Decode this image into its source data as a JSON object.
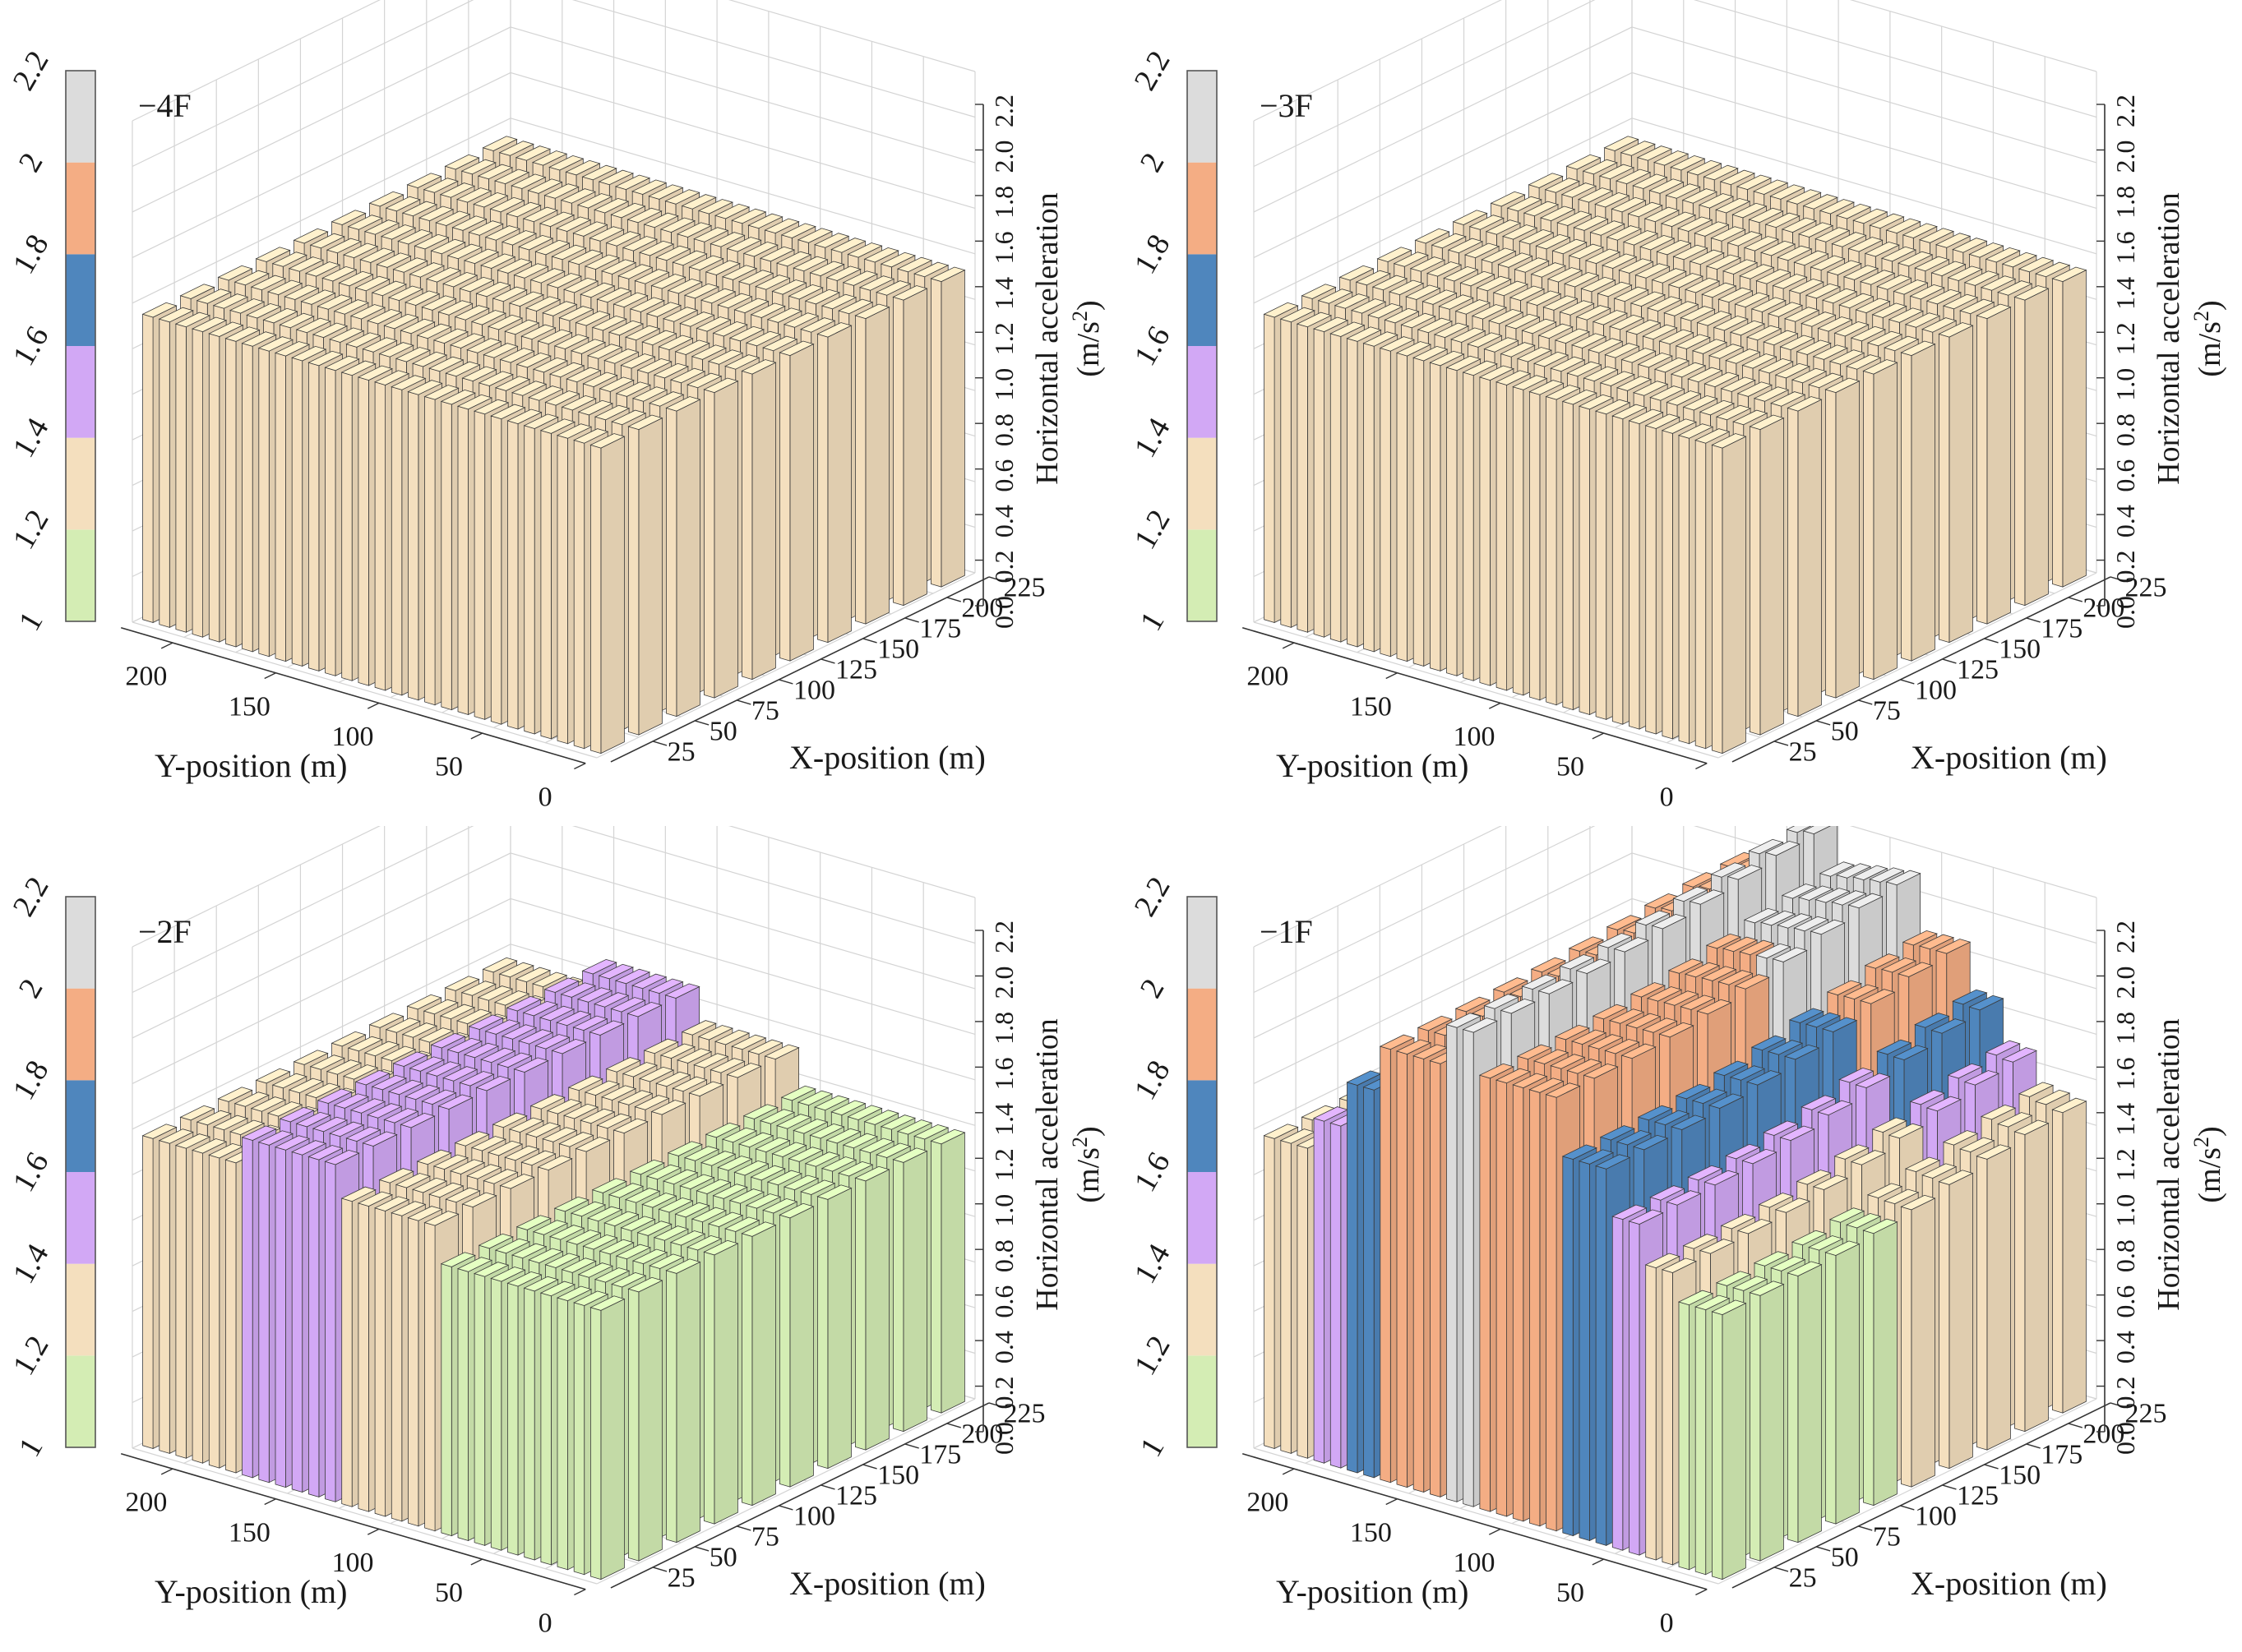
{
  "figure": {
    "description_panels": [
      "-4F",
      "-3F",
      "-2F",
      "-1F"
    ]
  },
  "chart_data": [
    {
      "type": "bar3d",
      "panel_label": "−4F",
      "zlabel_main": "Horizontal acceleration",
      "zlabel_unit_prefix": "(m/s",
      "zlabel_unit_sup": "2",
      "zlabel_unit_suffix": ")",
      "xlabel": "X-position (m)",
      "ylabel": "Y-position (m)",
      "x_ticks": [
        "25",
        "50",
        "75",
        "100",
        "125",
        "150",
        "175",
        "200",
        "225"
      ],
      "y_ticks": [
        "0",
        "50",
        "100",
        "150",
        "200"
      ],
      "z_ticks": [
        "0.0",
        "0.2",
        "0.4",
        "0.6",
        "0.8",
        "1.0",
        "1.2",
        "1.4",
        "1.6",
        "1.8",
        "2.0",
        "2.2"
      ],
      "zlim": [
        0,
        2.2
      ],
      "colorbar": {
        "ticks": [
          "1",
          "1.2",
          "1.4",
          "1.6",
          "1.8",
          "2",
          "2.2"
        ],
        "bands": [
          {
            "from": 1.0,
            "to": 1.2,
            "color": "#d4edb4"
          },
          {
            "from": 1.2,
            "to": 1.4,
            "color": "#f4dfbe"
          },
          {
            "from": 1.4,
            "to": 1.6,
            "color": "#d2a8f5"
          },
          {
            "from": 1.6,
            "to": 1.8,
            "color": "#4f86bd"
          },
          {
            "from": 1.8,
            "to": 2.0,
            "color": "#f4ad84"
          },
          {
            "from": 2.0,
            "to": 2.2,
            "color": "#dcdcdc"
          }
        ]
      },
      "grid": {
        "nx": 10,
        "ny": 28
      },
      "surface": {
        "base": 1.34,
        "bands": [],
        "bumps": []
      }
    },
    {
      "type": "bar3d",
      "panel_label": "−3F",
      "zlabel_main": "Horizontal acceleration",
      "zlabel_unit_prefix": "(m/s",
      "zlabel_unit_sup": "2",
      "zlabel_unit_suffix": ")",
      "xlabel": "X-position (m)",
      "ylabel": "Y-position (m)",
      "x_ticks": [
        "25",
        "50",
        "75",
        "100",
        "125",
        "150",
        "175",
        "200",
        "225"
      ],
      "y_ticks": [
        "0",
        "50",
        "100",
        "150",
        "200"
      ],
      "z_ticks": [
        "0.0",
        "0.2",
        "0.4",
        "0.6",
        "0.8",
        "1.0",
        "1.2",
        "1.4",
        "1.6",
        "1.8",
        "2.0",
        "2.2"
      ],
      "zlim": [
        0,
        2.2
      ],
      "colorbar": {
        "ticks": [
          "1",
          "1.2",
          "1.4",
          "1.6",
          "1.8",
          "2",
          "2.2"
        ],
        "bands": [
          {
            "from": 1.0,
            "to": 1.2,
            "color": "#d4edb4"
          },
          {
            "from": 1.2,
            "to": 1.4,
            "color": "#f4dfbe"
          },
          {
            "from": 1.4,
            "to": 1.6,
            "color": "#d2a8f5"
          },
          {
            "from": 1.6,
            "to": 1.8,
            "color": "#4f86bd"
          },
          {
            "from": 1.8,
            "to": 2.0,
            "color": "#f4ad84"
          },
          {
            "from": 2.0,
            "to": 2.2,
            "color": "#dcdcdc"
          }
        ]
      },
      "grid": {
        "nx": 10,
        "ny": 28
      },
      "surface": {
        "base": 1.34,
        "bands": [],
        "bumps": []
      }
    },
    {
      "type": "bar3d",
      "panel_label": "−2F",
      "zlabel_main": "Horizontal acceleration",
      "zlabel_unit_prefix": "(m/s",
      "zlabel_unit_sup": "2",
      "zlabel_unit_suffix": ")",
      "xlabel": "X-position (m)",
      "ylabel": "Y-position (m)",
      "x_ticks": [
        "25",
        "50",
        "75",
        "100",
        "125",
        "150",
        "175",
        "200",
        "225"
      ],
      "y_ticks": [
        "0",
        "50",
        "100",
        "150",
        "200"
      ],
      "z_ticks": [
        "0.0",
        "0.2",
        "0.4",
        "0.6",
        "0.8",
        "1.0",
        "1.2",
        "1.4",
        "1.6",
        "1.8",
        "2.0",
        "2.2"
      ],
      "zlim": [
        0,
        2.2
      ],
      "colorbar": {
        "ticks": [
          "1",
          "1.2",
          "1.4",
          "1.6",
          "1.8",
          "2",
          "2.2"
        ],
        "bands": [
          {
            "from": 1.0,
            "to": 1.2,
            "color": "#d4edb4"
          },
          {
            "from": 1.2,
            "to": 1.4,
            "color": "#f4dfbe"
          },
          {
            "from": 1.4,
            "to": 1.6,
            "color": "#d2a8f5"
          },
          {
            "from": 1.6,
            "to": 1.8,
            "color": "#4f86bd"
          },
          {
            "from": 1.8,
            "to": 2.0,
            "color": "#f4ad84"
          },
          {
            "from": 2.0,
            "to": 2.2,
            "color": "#dcdcdc"
          }
        ]
      },
      "grid": {
        "nx": 10,
        "ny": 28
      },
      "surface": {
        "base": 1.18,
        "bands": [
          {
            "y_from": 0,
            "y_to": 80,
            "value": 1.18
          },
          {
            "y_from": 80,
            "y_to": 130,
            "value": 1.34
          },
          {
            "y_from": 130,
            "y_to": 180,
            "value": 1.48
          },
          {
            "y_from": 180,
            "y_to": 225,
            "value": 1.36
          }
        ],
        "bumps": []
      }
    },
    {
      "type": "bar3d",
      "panel_label": "−1F",
      "zlabel_main": "Horizontal acceleration",
      "zlabel_unit_prefix": "(m/s",
      "zlabel_unit_sup": "2",
      "zlabel_unit_suffix": ")",
      "xlabel": "X-position (m)",
      "ylabel": "Y-position (m)",
      "x_ticks": [
        "25",
        "50",
        "75",
        "100",
        "125",
        "150",
        "175",
        "200",
        "225"
      ],
      "y_ticks": [
        "0",
        "50",
        "100",
        "150",
        "200"
      ],
      "z_ticks": [
        "0.0",
        "0.2",
        "0.4",
        "0.6",
        "0.8",
        "1.0",
        "1.2",
        "1.4",
        "1.6",
        "1.8",
        "2.0",
        "2.2"
      ],
      "zlim": [
        0,
        2.2
      ],
      "colorbar": {
        "ticks": [
          "1",
          "1.2",
          "1.4",
          "1.6",
          "1.8",
          "2",
          "2.2"
        ],
        "bands": [
          {
            "from": 1.0,
            "to": 1.2,
            "color": "#d4edb4"
          },
          {
            "from": 1.2,
            "to": 1.4,
            "color": "#f4dfbe"
          },
          {
            "from": 1.4,
            "to": 1.6,
            "color": "#d2a8f5"
          },
          {
            "from": 1.6,
            "to": 1.8,
            "color": "#4f86bd"
          },
          {
            "from": 1.8,
            "to": 2.0,
            "color": "#f4ad84"
          },
          {
            "from": 2.0,
            "to": 2.2,
            "color": "#dcdcdc"
          }
        ]
      },
      "grid": {
        "nx": 10,
        "ny": 28
      },
      "surface": {
        "base": 1.3,
        "bands": [
          {
            "y_from": 0,
            "y_to": 25,
            "value": 1.16
          },
          {
            "y_from": 25,
            "y_to": 40,
            "value": 1.28
          },
          {
            "y_from": 40,
            "y_to": 60,
            "value": 1.45
          },
          {
            "y_from": 60,
            "y_to": 80,
            "value": 1.65
          },
          {
            "y_from": 80,
            "y_to": 120,
            "value": 1.9
          },
          {
            "y_from": 120,
            "y_to": 140,
            "value": 2.08
          },
          {
            "y_from": 140,
            "y_to": 170,
            "value": 1.9
          },
          {
            "y_from": 170,
            "y_to": 185,
            "value": 1.7
          },
          {
            "y_from": 185,
            "y_to": 200,
            "value": 1.5
          },
          {
            "y_from": 200,
            "y_to": 225,
            "value": 1.36
          }
        ],
        "bumps": [
          {
            "x": 225,
            "y": 60,
            "amplitude": 0.22,
            "spread": 70
          }
        ]
      }
    }
  ]
}
